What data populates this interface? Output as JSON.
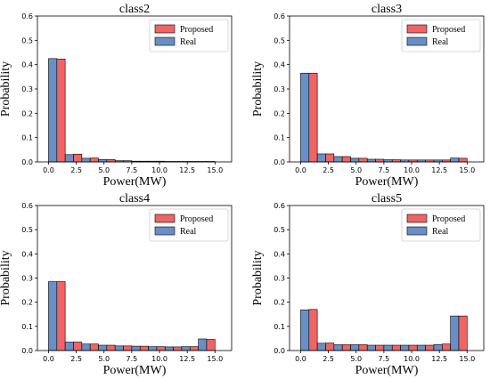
{
  "figure": {
    "colors": {
      "proposed": "#f06464",
      "real": "#6a8fc6",
      "edge": "#000000"
    }
  },
  "chart_data": [
    {
      "type": "bar",
      "title": "class2",
      "xlabel": "Power(MW)",
      "ylabel": "Probability",
      "ylim": [
        0,
        0.6
      ],
      "xlim": [
        -1,
        16.5
      ],
      "yticks": [
        "0.0",
        "0.1",
        "0.2",
        "0.3",
        "0.4",
        "0.5",
        "0.6"
      ],
      "xticks": [
        "0.0",
        "2.5",
        "5.0",
        "7.5",
        "10.0",
        "12.5",
        "15.0"
      ],
      "bin_centers": [
        0.75,
        2.25,
        3.75,
        5.25,
        6.75,
        8.25,
        9.75,
        11.25,
        12.75,
        14.25
      ],
      "legend": {
        "position": "top-right",
        "entries": [
          "Proposed",
          "Real"
        ]
      },
      "series": [
        {
          "name": "Real",
          "values": [
            0.425,
            0.03,
            0.015,
            0.01,
            0.005,
            0.003,
            0.003,
            0.002,
            0.002,
            0.002
          ]
        },
        {
          "name": "Proposed",
          "values": [
            0.423,
            0.032,
            0.016,
            0.01,
            0.005,
            0.003,
            0.003,
            0.002,
            0.002,
            0.002
          ]
        }
      ]
    },
    {
      "type": "bar",
      "title": "class3",
      "xlabel": "Power(MW)",
      "ylabel": "Probability",
      "ylim": [
        0,
        0.6
      ],
      "xlim": [
        -1,
        16.5
      ],
      "yticks": [
        "0.0",
        "0.1",
        "0.2",
        "0.3",
        "0.4",
        "0.5",
        "0.6"
      ],
      "xticks": [
        "0.0",
        "2.5",
        "5.0",
        "7.5",
        "10.0",
        "12.5",
        "15.0"
      ],
      "bin_centers": [
        0.75,
        2.25,
        3.75,
        5.25,
        6.75,
        8.25,
        9.75,
        11.25,
        12.75,
        14.25
      ],
      "legend": {
        "position": "top-right",
        "entries": [
          "Proposed",
          "Real"
        ]
      },
      "series": [
        {
          "name": "Real",
          "values": [
            0.365,
            0.033,
            0.022,
            0.015,
            0.011,
            0.009,
            0.008,
            0.008,
            0.008,
            0.016
          ]
        },
        {
          "name": "Proposed",
          "values": [
            0.365,
            0.033,
            0.022,
            0.015,
            0.011,
            0.009,
            0.008,
            0.008,
            0.008,
            0.015
          ]
        }
      ]
    },
    {
      "type": "bar",
      "title": "class4",
      "xlabel": "Power(MW)",
      "ylabel": "Probability",
      "ylim": [
        0,
        0.6
      ],
      "xlim": [
        -1,
        16.5
      ],
      "yticks": [
        "0.0",
        "0.1",
        "0.2",
        "0.3",
        "0.4",
        "0.5",
        "0.6"
      ],
      "xticks": [
        "0.0",
        "2.5",
        "5.0",
        "7.5",
        "10.0",
        "12.5",
        "15.0"
      ],
      "bin_centers": [
        0.75,
        2.25,
        3.75,
        5.25,
        6.75,
        8.25,
        9.75,
        11.25,
        12.75,
        14.25
      ],
      "legend": {
        "position": "top-right",
        "entries": [
          "Proposed",
          "Real"
        ]
      },
      "series": [
        {
          "name": "Real",
          "values": [
            0.285,
            0.035,
            0.027,
            0.022,
            0.019,
            0.018,
            0.016,
            0.015,
            0.016,
            0.048
          ]
        },
        {
          "name": "Proposed",
          "values": [
            0.285,
            0.035,
            0.027,
            0.022,
            0.019,
            0.018,
            0.016,
            0.015,
            0.016,
            0.046
          ]
        }
      ]
    },
    {
      "type": "bar",
      "title": "class5",
      "xlabel": "Power(MW)",
      "ylabel": "Probability",
      "ylim": [
        0,
        0.6
      ],
      "xlim": [
        -1,
        16.5
      ],
      "yticks": [
        "0.0",
        "0.1",
        "0.2",
        "0.3",
        "0.4",
        "0.5",
        "0.6"
      ],
      "xticks": [
        "0.0",
        "2.5",
        "5.0",
        "7.5",
        "10.0",
        "12.5",
        "15.0"
      ],
      "bin_centers": [
        0.75,
        2.25,
        3.75,
        5.25,
        6.75,
        8.25,
        9.75,
        11.25,
        12.75,
        14.25
      ],
      "legend": {
        "position": "top-right",
        "entries": [
          "Proposed",
          "Real"
        ]
      },
      "series": [
        {
          "name": "Real",
          "values": [
            0.168,
            0.03,
            0.024,
            0.024,
            0.022,
            0.022,
            0.022,
            0.022,
            0.025,
            0.143
          ]
        },
        {
          "name": "Proposed",
          "values": [
            0.17,
            0.031,
            0.024,
            0.024,
            0.022,
            0.022,
            0.022,
            0.022,
            0.027,
            0.143
          ]
        }
      ]
    }
  ]
}
